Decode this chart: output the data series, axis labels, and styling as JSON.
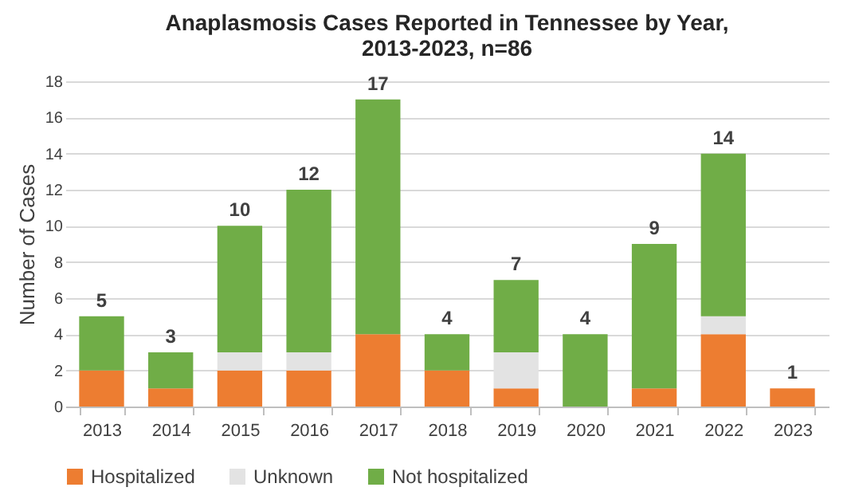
{
  "chart_data": {
    "type": "bar",
    "title": [
      "Anaplasmosis Cases Reported in Tennessee by Year,",
      "2013-2023, n=86"
    ],
    "ylabel": "Number of Cases",
    "categories": [
      "2013",
      "2014",
      "2015",
      "2016",
      "2017",
      "2018",
      "2019",
      "2020",
      "2021",
      "2022",
      "2023"
    ],
    "stacked": true,
    "series": [
      {
        "name": "Hospitalized",
        "color": "#ed7d31",
        "values": [
          2,
          1,
          2,
          2,
          4,
          2,
          1,
          0,
          1,
          4,
          1
        ]
      },
      {
        "name": "Unknown",
        "color": "#e3e3e3",
        "values": [
          0,
          0,
          1,
          1,
          0,
          0,
          2,
          0,
          0,
          1,
          0
        ]
      },
      {
        "name": "Not hospitalized",
        "color": "#70ad47",
        "values": [
          3,
          2,
          7,
          9,
          13,
          2,
          4,
          4,
          8,
          9,
          0
        ]
      }
    ],
    "totals": [
      "5",
      "3",
      "10",
      "12",
      "17",
      "4",
      "7",
      "4",
      "9",
      "14",
      "1"
    ],
    "ylim": [
      0,
      18
    ],
    "yticks": [
      0,
      2,
      4,
      6,
      8,
      10,
      12,
      14,
      16,
      18
    ],
    "grid": "y",
    "legend": "bottom"
  }
}
